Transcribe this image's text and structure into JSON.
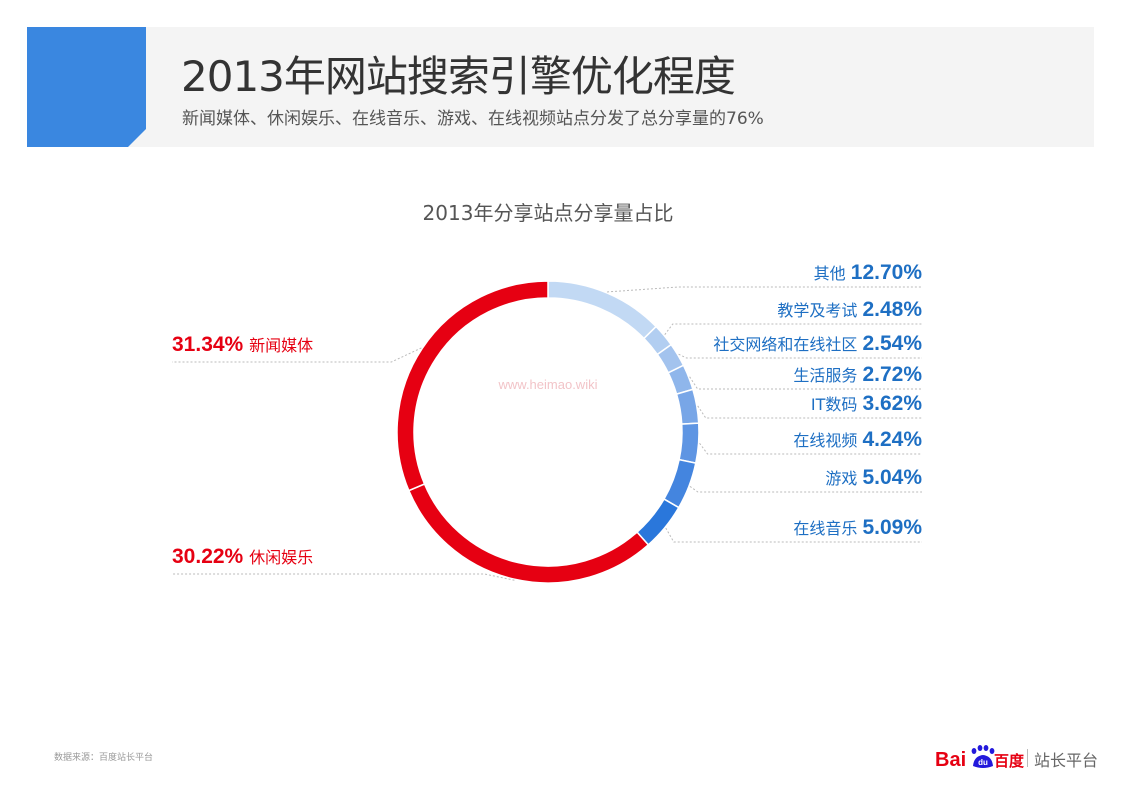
{
  "header": {
    "title": "2013年网站搜索引擎优化程度",
    "subtitle": "新闻媒体、休闲娱乐、在线音乐、游戏、在线视频站点分发了总分享量的76%"
  },
  "chart_data": {
    "type": "pie",
    "variant": "donut",
    "title": "2013年分享站点分享量占比",
    "unit": "%",
    "slices": [
      {
        "name": "其他",
        "value": 12.7,
        "value_label": "12.70%",
        "color": "#c2d9f4"
      },
      {
        "name": "教学及考试",
        "value": 2.48,
        "value_label": "2.48%",
        "color": "#b2cef1"
      },
      {
        "name": "社交网络和在线社区",
        "value": 2.54,
        "value_label": "2.54%",
        "color": "#a3c3ee"
      },
      {
        "name": "生活服务",
        "value": 2.72,
        "value_label": "2.72%",
        "color": "#8fb6eb"
      },
      {
        "name": "IT数码",
        "value": 3.62,
        "value_label": "3.62%",
        "color": "#78a6e7"
      },
      {
        "name": "在线视频",
        "value": 4.24,
        "value_label": "4.24%",
        "color": "#5e95e3"
      },
      {
        "name": "游戏",
        "value": 5.04,
        "value_label": "5.04%",
        "color": "#4485df"
      },
      {
        "name": "在线音乐",
        "value": 5.09,
        "value_label": "5.09%",
        "color": "#2a77db"
      },
      {
        "name": "休闲娱乐",
        "value": 30.22,
        "value_label": "30.22%",
        "color": "#e60012"
      },
      {
        "name": "新闻媒体",
        "value": 31.34,
        "value_label": "31.34%",
        "color": "#e60012"
      }
    ],
    "watermark": "www.heimao.wiki",
    "label_colors": {
      "red": "#e60012",
      "blue": "#1e6fc3"
    }
  },
  "footer": {
    "source": "数据来源：百度站长平台",
    "brand": {
      "bai": "Bai",
      "du": "du",
      "baidu": "百度",
      "platform": "站长平台"
    }
  },
  "colors": {
    "accent_blue": "#3a87e0",
    "brand_red": "#e60012",
    "brand_blue": "#2319dc"
  }
}
